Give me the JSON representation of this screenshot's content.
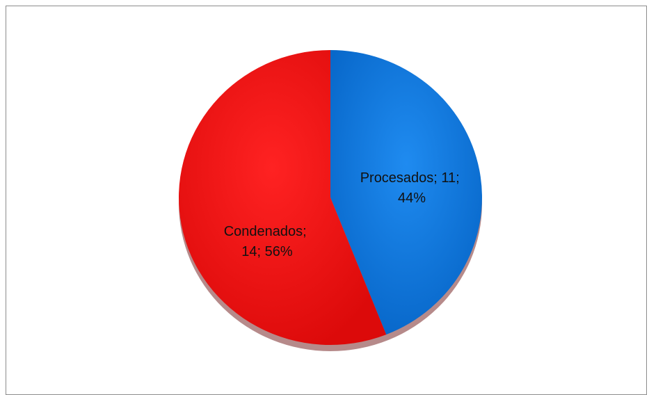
{
  "chart_data": {
    "type": "pie",
    "title": "",
    "legend": "none",
    "slices": [
      {
        "label": "Procesados",
        "value": 11,
        "percent": "44%",
        "color": "#0A78DC"
      },
      {
        "label": "Condenados",
        "value": 14,
        "percent": "56%",
        "color": "#F01414"
      }
    ],
    "data_labels": [
      {
        "line1": "Procesados; 11;",
        "line2": "44%"
      },
      {
        "line1": "Condenados;",
        "line2": "14; 56%"
      }
    ]
  }
}
